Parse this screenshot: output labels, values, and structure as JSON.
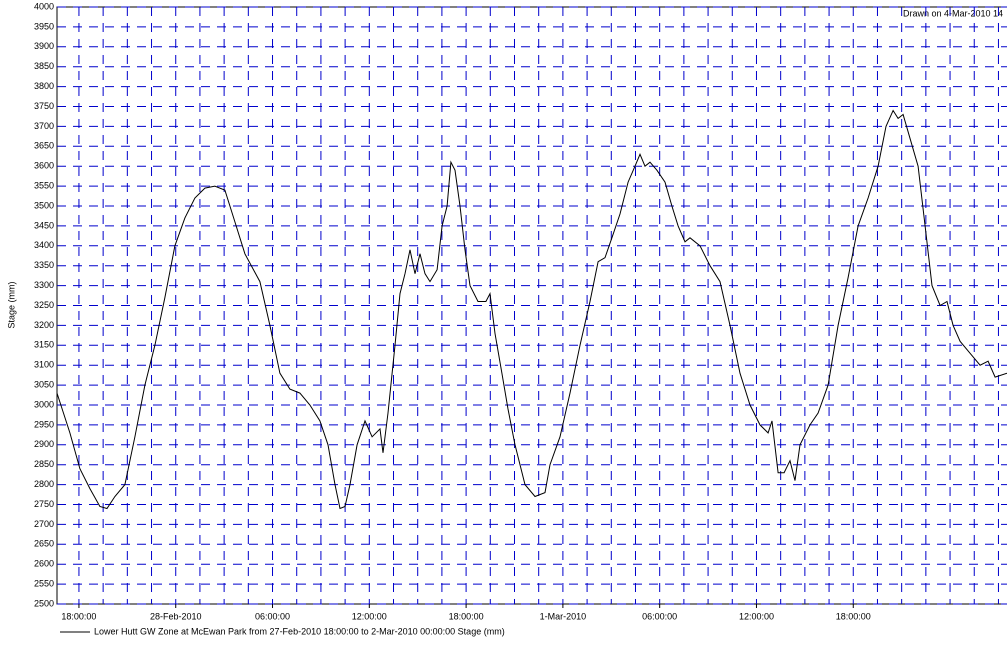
{
  "chart_data": {
    "type": "line",
    "annotation": "Drawn on  4-Mar-2010 14",
    "y_label": "Stage (mm)",
    "x": [
      16.64,
      17.44,
      18.06,
      18.68,
      19.3,
      19.74,
      20.23,
      20.85,
      21.47,
      22.09,
      22.71,
      23.33,
      23.95,
      24.57,
      25.19,
      25.81,
      26.43,
      27.05,
      27.67,
      28.29,
      29.22,
      29.84,
      30.46,
      31.08,
      31.7,
      32.32,
      32.94,
      33.44,
      33.87,
      34.18,
      34.49,
      34.8,
      35.24,
      35.73,
      36.17,
      36.66,
      36.85,
      37.16,
      37.59,
      37.9,
      38.21,
      38.52,
      38.83,
      39.14,
      39.45,
      39.76,
      40.2,
      40.51,
      40.82,
      41.06,
      41.31,
      41.62,
      41.93,
      42.24,
      42.74,
      43.23,
      43.48,
      43.79,
      44.22,
      44.6,
      45.03,
      45.65,
      46.27,
      46.89,
      47.2,
      47.82,
      48.44,
      49.06,
      49.68,
      50.18,
      50.61,
      51.04,
      51.54,
      52.04,
      52.47,
      52.78,
      53.09,
      53.4,
      53.83,
      54.33,
      54.76,
      55.14,
      55.57,
      55.88,
      56.5,
      57.12,
      57.74,
      58.36,
      58.98,
      59.6,
      60.22,
      60.72,
      60.96,
      61.34,
      61.71,
      62.08,
      62.39,
      62.7,
      63.32,
      63.82,
      64.44,
      65.06,
      65.68,
      66.3,
      66.92,
      67.54,
      68.03,
      68.47,
      68.78,
      69.09,
      69.52,
      70.02,
      70.45,
      70.88,
      71.38,
      71.81,
      72.19,
      72.62,
      73.24,
      73.86,
      74.36,
      74.79,
      75.53
    ],
    "series": [
      {
        "name": "Lower Hutt GW Zone at McEwan Park from 27-Feb-2010 18:00:00 to  2-Mar-2010 00:00:00 Stage (mm)",
        "color": "#000000",
        "values": [
          3030,
          2930,
          2840,
          2790,
          2745,
          2740,
          2770,
          2800,
          2920,
          3050,
          3150,
          3270,
          3400,
          3470,
          3520,
          3545,
          3550,
          3540,
          3460,
          3380,
          3310,
          3200,
          3080,
          3040,
          3030,
          3000,
          2960,
          2900,
          2800,
          2740,
          2745,
          2800,
          2900,
          2960,
          2920,
          2940,
          2880,
          2980,
          3150,
          3280,
          3330,
          3390,
          3330,
          3380,
          3330,
          3310,
          3340,
          3450,
          3500,
          3610,
          3590,
          3500,
          3390,
          3300,
          3260,
          3260,
          3280,
          3180,
          3080,
          2990,
          2900,
          2800,
          2770,
          2780,
          2850,
          2920,
          3030,
          3150,
          3260,
          3360,
          3370,
          3420,
          3480,
          3560,
          3600,
          3630,
          3600,
          3610,
          3590,
          3560,
          3500,
          3450,
          3410,
          3420,
          3400,
          3350,
          3310,
          3200,
          3080,
          3000,
          2950,
          2930,
          2960,
          2830,
          2830,
          2860,
          2810,
          2900,
          2950,
          2980,
          3050,
          3200,
          3320,
          3450,
          3520,
          3600,
          3700,
          3740,
          3720,
          3730,
          3670,
          3600,
          3450,
          3300,
          3250,
          3260,
          3200,
          3160,
          3130,
          3100,
          3110,
          3070,
          3080
        ]
      }
    ],
    "xlim": [
      16.64,
      75.53
    ],
    "xticks": [
      {
        "value": 18,
        "label": "18:00:00"
      },
      {
        "value": 24,
        "label": "28-Feb-2010"
      },
      {
        "value": 30,
        "label": "06:00:00"
      },
      {
        "value": 36,
        "label": "12:00:00"
      },
      {
        "value": 42,
        "label": "18:00:00"
      },
      {
        "value": 48,
        "label": "1-Mar-2010"
      },
      {
        "value": 54,
        "label": "06:00:00"
      },
      {
        "value": 60,
        "label": "12:00:00"
      },
      {
        "value": 66,
        "label": "18:00:00"
      }
    ],
    "xminorticks": [
      18,
      19.5,
      21,
      22.5,
      24,
      25.5,
      27,
      28.5,
      30,
      31.5,
      33,
      34.5,
      36,
      37.5,
      39,
      40.5,
      42,
      43.5,
      45,
      46.5,
      48,
      49.5,
      51,
      52.5,
      54,
      55.5,
      57,
      58.5,
      60,
      61.5,
      63,
      64.5,
      66,
      67.5,
      69,
      70.5,
      72,
      73.5,
      75
    ],
    "ylim": [
      2500,
      4000
    ],
    "yticks": [
      2500,
      2550,
      2600,
      2650,
      2700,
      2750,
      2800,
      2850,
      2900,
      2950,
      3000,
      3050,
      3100,
      3150,
      3200,
      3250,
      3300,
      3350,
      3400,
      3450,
      3500,
      3550,
      3600,
      3650,
      3700,
      3750,
      3800,
      3850,
      3900,
      3950,
      4000
    ],
    "grid": true
  }
}
